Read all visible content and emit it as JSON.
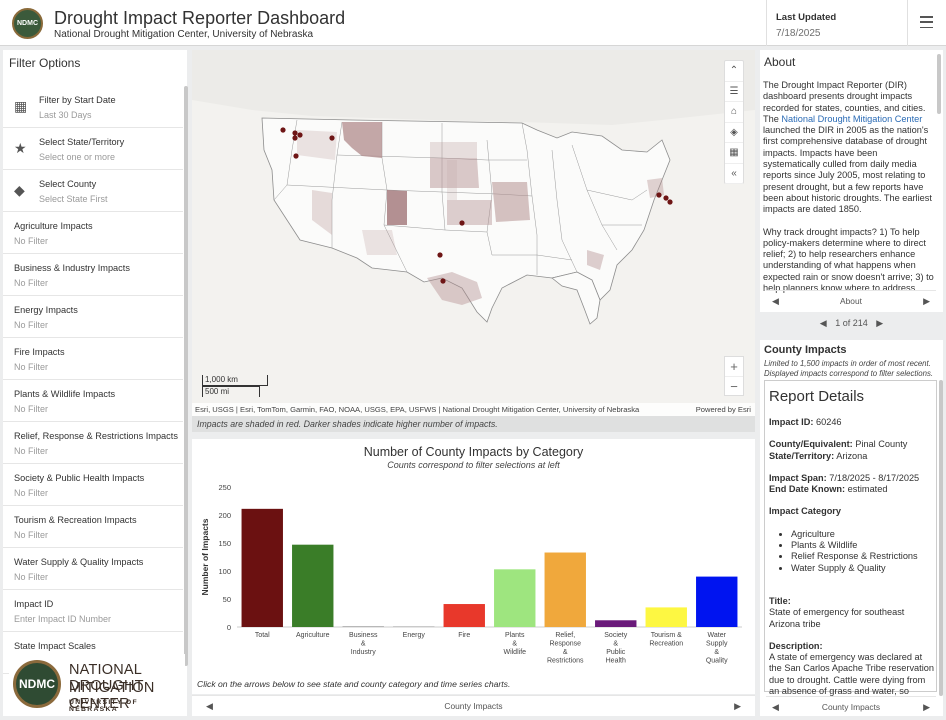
{
  "header": {
    "logo_text": "NDMC",
    "title": "Drought Impact Reporter Dashboard",
    "subtitle": "National Drought Mitigation Center, University of Nebraska",
    "last_updated_label": "Last Updated",
    "last_updated_value": "7/18/2025"
  },
  "filters": {
    "title": "Filter Options",
    "items": [
      {
        "label": "Filter by Start Date",
        "sub": "Last 30 Days",
        "icon": "calendar-icon"
      },
      {
        "label": "Select State/Territory",
        "sub": "Select one or more",
        "icon": "star-icon"
      },
      {
        "label": "Select County",
        "sub": "Select State First",
        "icon": "diamond-icon"
      },
      {
        "label": "Agriculture Impacts",
        "sub": "No Filter"
      },
      {
        "label": "Business & Industry Impacts",
        "sub": "No Filter"
      },
      {
        "label": "Energy Impacts",
        "sub": "No Filter"
      },
      {
        "label": "Fire Impacts",
        "sub": "No Filter"
      },
      {
        "label": "Plants & Wildlife Impacts",
        "sub": "No Filter"
      },
      {
        "label": "Relief, Response & Restrictions Impacts",
        "sub": "No Filter"
      },
      {
        "label": "Society & Public Health Impacts",
        "sub": "No Filter"
      },
      {
        "label": "Tourism & Recreation Impacts",
        "sub": "No Filter"
      },
      {
        "label": "Water Supply & Quality Impacts",
        "sub": "No Filter"
      },
      {
        "label": "Impact ID",
        "sub": "Enter Impact ID Number"
      },
      {
        "label": "State Impact Scales",
        "sub": ""
      }
    ],
    "logo": {
      "circle": "NDMC",
      "line1": "NATIONAL DROUGHT",
      "line2": "MITIGATION CENTER",
      "line3": "UNIVERSITY OF NEBRASKA"
    }
  },
  "map": {
    "scale_km": "1,000 km",
    "scale_mi": "500 mi",
    "attribution": "Esri, USGS | Esri, TomTom, Garmin, FAO, NOAA, USGS, EPA, USFWS | National Drought Mitigation Center, University of Nebraska",
    "powered_by": "Powered by Esri",
    "note": "Impacts are shaded in red. Darker shades indicate higher number of impacts.",
    "zoom_in": "+",
    "zoom_out": "−"
  },
  "chart_data": {
    "type": "bar",
    "title": "Number of County Impacts by Category",
    "subtitle": "Counts correspond to filter selections at left",
    "ylabel": "Number of Impacts",
    "xlabel": "",
    "ylim": [
      0,
      250
    ],
    "yticks": [
      0,
      50,
      100,
      150,
      200,
      250
    ],
    "categories": [
      "Total",
      "Agriculture",
      "Business & Industry",
      "Energy",
      "Fire",
      "Plants & Wildlife",
      "Relief, Response & Restrictions",
      "Society & Public Health",
      "Tourism & Recreation",
      "Water Supply & Quality"
    ],
    "values": [
      211,
      147,
      1,
      0,
      41,
      103,
      133,
      12,
      35,
      90
    ],
    "colors": [
      "#6b1111",
      "#3a7d28",
      "#888888",
      "#888888",
      "#e8382b",
      "#9ee57f",
      "#f0a83c",
      "#6a1a7a",
      "#fdf742",
      "#0014f0"
    ],
    "category_lines": [
      [
        "Total"
      ],
      [
        "Agriculture"
      ],
      [
        "Business",
        "&",
        "Industry"
      ],
      [
        "Energy"
      ],
      [
        "Fire"
      ],
      [
        "Plants",
        "&",
        "Wildlife"
      ],
      [
        "Relief,",
        "Response",
        "&",
        "Restrictions"
      ],
      [
        "Society",
        "&",
        "Public",
        "Health"
      ],
      [
        "Tourism &",
        "Recreation"
      ],
      [
        "Water",
        "Supply",
        "&",
        "Quality"
      ]
    ],
    "grid": false,
    "legend": "none"
  },
  "chart_panel": {
    "note": "Click on the arrows below to see state and county category and time series charts.",
    "nav_label": "County Impacts"
  },
  "about": {
    "title": "About",
    "p1_a": "The Drought Impact Reporter (DIR) dashboard presents drought impacts recorded for states, counties, and cities. The ",
    "p1_link": "National Drought Mitigation Center",
    "p1_b": " launched the DIR in 2005 as the nation's first comprehensive database of drought impacts. Impacts have been systematically culled from daily media reports since July 2005, most relating to present drought, but a few reports have been about historic droughts. The earliest impacts are dated 1850.",
    "p2": "Why track drought impacts? 1) To help policy-makers determine where to direct relief; 2) to help researchers enhance understanding of what happens when expected rain or snow doesn't arrive; 3) to help planners know where to address",
    "nav_label": "About"
  },
  "pager": "1 of 214",
  "county": {
    "title": "County Impacts",
    "subtitle": "Limited to 1,500 impacts in order of most recent. Displayed impacts correspond to filter selections.",
    "report_title": "Report Details",
    "impact_id_label": "Impact ID:",
    "impact_id": "60246",
    "county_label": "County/Equivalent:",
    "county_value": "Pinal County",
    "state_label": "State/Territory:",
    "state_value": "Arizona",
    "span_label": "Impact Span:",
    "span_value": "7/18/2025 - 8/17/2025",
    "end_label": "End Date Known:",
    "end_value": "estimated",
    "category_label": "Impact Category",
    "categories": [
      "Agriculture",
      "Plants & Wildlife",
      "Relief Response & Restrictions",
      "Water Supply & Quality"
    ],
    "title_label": "Title:",
    "title_value": "State of emergency for southeast Arizona tribe",
    "desc_label": "Description:",
    "desc_value": "A state of emergency was declared at the San Carlos Apache Tribe reservation due to drought. Cattle were dying from an absence of grass and water, so",
    "nav_label": "County Impacts"
  },
  "icons": {
    "nav_prev": "◀",
    "nav_next": "▶",
    "tool_expand": "⌃",
    "tool_legend": "☰",
    "tool_home": "⌂",
    "tool_layers": "◈",
    "tool_grid": "▦",
    "tool_collapse": "«",
    "pager_prev": "◀",
    "pager_next": "▶"
  }
}
